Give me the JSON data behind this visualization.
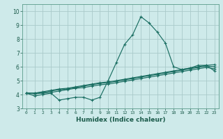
{
  "xlabel": "Humidex (Indice chaleur)",
  "background_color": "#ceeaea",
  "grid_color": "#aacaca",
  "line_color": "#1a6e62",
  "xlim": [
    -0.5,
    23.5
  ],
  "ylim": [
    3.0,
    10.5
  ],
  "xtick_labels": [
    "0",
    "1",
    "2",
    "3",
    "4",
    "5",
    "6",
    "7",
    "8",
    "9",
    "10",
    "11",
    "12",
    "13",
    "14",
    "15",
    "16",
    "17",
    "18",
    "19",
    "20",
    "21",
    "22",
    "23"
  ],
  "ytick_labels": [
    "3",
    "4",
    "5",
    "6",
    "7",
    "8",
    "9",
    "10"
  ],
  "ytick_vals": [
    3,
    4,
    5,
    6,
    7,
    8,
    9,
    10
  ],
  "series": [
    [
      4.1,
      3.9,
      4.0,
      4.1,
      3.6,
      3.7,
      3.8,
      3.8,
      3.6,
      3.8,
      5.0,
      6.3,
      7.6,
      8.3,
      9.6,
      9.15,
      8.5,
      7.7,
      6.0,
      5.8,
      5.9,
      6.1,
      6.1,
      5.7
    ],
    [
      4.1,
      4.05,
      4.1,
      4.15,
      4.25,
      4.35,
      4.45,
      4.5,
      4.6,
      4.7,
      4.75,
      4.85,
      4.95,
      5.05,
      5.15,
      5.25,
      5.35,
      5.45,
      5.55,
      5.65,
      5.75,
      5.85,
      5.95,
      5.85
    ],
    [
      4.1,
      4.1,
      4.2,
      4.3,
      4.4,
      4.45,
      4.55,
      4.65,
      4.75,
      4.85,
      4.9,
      5.0,
      5.1,
      5.2,
      5.3,
      5.4,
      5.5,
      5.6,
      5.7,
      5.8,
      5.9,
      6.0,
      6.1,
      6.15
    ],
    [
      4.1,
      4.1,
      4.15,
      4.25,
      4.35,
      4.4,
      4.5,
      4.6,
      4.7,
      4.8,
      4.85,
      4.95,
      5.05,
      5.15,
      5.25,
      5.35,
      5.45,
      5.55,
      5.65,
      5.75,
      5.85,
      5.95,
      6.05,
      6.0
    ]
  ]
}
